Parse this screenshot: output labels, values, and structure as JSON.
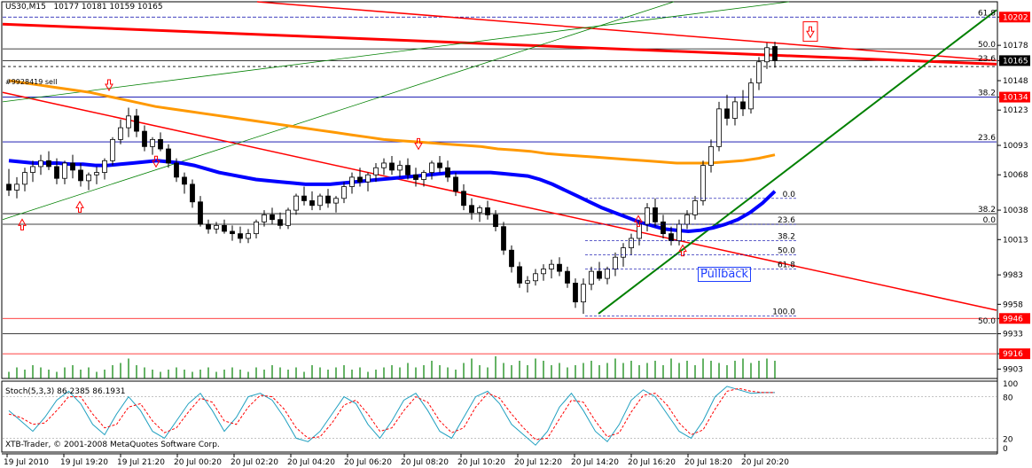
{
  "header": {
    "symbol": "US30,M15",
    "ohlc": "10177 10181 10159 10165"
  },
  "order_label": "#9928419 sell",
  "stoch_label": "Stoch(5,3,3) 86.2385 86.1931",
  "copyright": "XTB-Trader, © 2001-2008 MetaQuotes Software Corp.",
  "pullback_label": "Pullback",
  "colors": {
    "bull": "#ffffff",
    "bear": "#000000",
    "ma_blue": "#0000ff",
    "ma_orange": "#ff9900",
    "ma_red": "#ff0000",
    "bollinger": "#008000",
    "trend_red": "#ff0000",
    "trend_green": "#008000",
    "level_blue": "#0000aa",
    "price_tag": "#ff0000"
  },
  "chart_data": {
    "type": "candlestick",
    "price_axis": {
      "ticks": [
        "10202",
        "10178",
        "10165",
        "10148",
        "10134",
        "10123",
        "10093",
        "10068",
        "10038",
        "10013",
        "9983",
        "9958",
        "9946",
        "9933",
        "9916",
        "9903"
      ],
      "ylim": [
        9895,
        10215
      ]
    },
    "stoch_axis": {
      "ticks": [
        "100",
        "80",
        "20",
        "0"
      ],
      "ylim": [
        0,
        100
      ]
    },
    "time_axis": [
      "19 Jul 2010",
      "19 Jul 19:20",
      "19 Jul 21:20",
      "20 Jul 00:20",
      "20 Jul 02:20",
      "20 Jul 04:20",
      "20 Jul 06:20",
      "20 Jul 08:20",
      "20 Jul 10:20",
      "20 Jul 12:20",
      "20 Jul 14:20",
      "20 Jul 16:20",
      "20 Jul 18:20",
      "20 Jul 20:20"
    ],
    "price_tags": [
      {
        "value": 10202,
        "label": "10202"
      },
      {
        "value": 10165,
        "label": "10165"
      },
      {
        "value": 10134,
        "label": "10134"
      },
      {
        "value": 9946,
        "label": "9946"
      },
      {
        "value": 9916,
        "label": "9916"
      }
    ],
    "fib_right_labels": [
      {
        "value": 10202,
        "label": "61.8"
      },
      {
        "value": 10175,
        "label": "50.0"
      },
      {
        "value": 10163,
        "label": "23.6"
      },
      {
        "value": 10134,
        "label": "38.2"
      },
      {
        "value": 10096,
        "label": "23.6"
      },
      {
        "value": 10035,
        "label": "38.2"
      },
      {
        "value": 10026,
        "label": "0.0"
      },
      {
        "value": 9940,
        "label": "50.0"
      }
    ],
    "fib_inner_labels": [
      {
        "value": 10048,
        "label": "0.0"
      },
      {
        "value": 10026,
        "label": "23.6"
      },
      {
        "value": 10012,
        "label": "38.2"
      },
      {
        "value": 10000,
        "label": "50.0"
      },
      {
        "value": 9988,
        "label": "61.8"
      },
      {
        "value": 9948,
        "label": "100.0"
      }
    ],
    "candles": [
      [
        10060,
        10073,
        10050,
        10055
      ],
      [
        10055,
        10066,
        10048,
        10060
      ],
      [
        10060,
        10074,
        10054,
        10070
      ],
      [
        10070,
        10080,
        10062,
        10075
      ],
      [
        10075,
        10085,
        10068,
        10080
      ],
      [
        10080,
        10088,
        10072,
        10075
      ],
      [
        10075,
        10082,
        10060,
        10065
      ],
      [
        10065,
        10080,
        10060,
        10078
      ],
      [
        10078,
        10085,
        10065,
        10072
      ],
      [
        10072,
        10078,
        10058,
        10063
      ],
      [
        10063,
        10070,
        10055,
        10068
      ],
      [
        10068,
        10075,
        10060,
        10070
      ],
      [
        10070,
        10082,
        10064,
        10080
      ],
      [
        10080,
        10100,
        10076,
        10098
      ],
      [
        10098,
        10115,
        10094,
        10108
      ],
      [
        10108,
        10125,
        10100,
        10118
      ],
      [
        10118,
        10124,
        10100,
        10105
      ],
      [
        10105,
        10110,
        10088,
        10092
      ],
      [
        10092,
        10100,
        10085,
        10098
      ],
      [
        10098,
        10104,
        10088,
        10090
      ],
      [
        10090,
        10094,
        10074,
        10078
      ],
      [
        10078,
        10082,
        10062,
        10066
      ],
      [
        10066,
        10070,
        10052,
        10060
      ],
      [
        10060,
        10064,
        10040,
        10045
      ],
      [
        10045,
        10050,
        10024,
        10026
      ],
      [
        10026,
        10030,
        10018,
        10022
      ],
      [
        10022,
        10028,
        10018,
        10025
      ],
      [
        10025,
        10030,
        10018,
        10020
      ],
      [
        10020,
        10025,
        10012,
        10018
      ],
      [
        10018,
        10024,
        10010,
        10014
      ],
      [
        10014,
        10022,
        10010,
        10018
      ],
      [
        10018,
        10030,
        10014,
        10028
      ],
      [
        10028,
        10038,
        10024,
        10034
      ],
      [
        10034,
        10040,
        10026,
        10030
      ],
      [
        10030,
        10036,
        10022,
        10025
      ],
      [
        10025,
        10040,
        10022,
        10038
      ],
      [
        10038,
        10052,
        10034,
        10050
      ],
      [
        10050,
        10058,
        10042,
        10046
      ],
      [
        10046,
        10054,
        10038,
        10042
      ],
      [
        10042,
        10052,
        10038,
        10050
      ],
      [
        10050,
        10056,
        10040,
        10044
      ],
      [
        10044,
        10050,
        10036,
        10048
      ],
      [
        10048,
        10062,
        10044,
        10058
      ],
      [
        10058,
        10070,
        10052,
        10066
      ],
      [
        10066,
        10074,
        10058,
        10062
      ],
      [
        10062,
        10070,
        10054,
        10068
      ],
      [
        10068,
        10078,
        10062,
        10074
      ],
      [
        10074,
        10082,
        10068,
        10078
      ],
      [
        10078,
        10084,
        10068,
        10072
      ],
      [
        10072,
        10080,
        10066,
        10076
      ],
      [
        10076,
        10082,
        10064,
        10068
      ],
      [
        10068,
        10074,
        10058,
        10064
      ],
      [
        10064,
        10072,
        10058,
        10070
      ],
      [
        10070,
        10080,
        10064,
        10078
      ],
      [
        10078,
        10084,
        10070,
        10074
      ],
      [
        10074,
        10080,
        10062,
        10066
      ],
      [
        10066,
        10070,
        10050,
        10054
      ],
      [
        10054,
        10060,
        10038,
        10042
      ],
      [
        10042,
        10048,
        10030,
        10036
      ],
      [
        10036,
        10042,
        10028,
        10040
      ],
      [
        10040,
        10046,
        10030,
        10034
      ],
      [
        10034,
        10038,
        10020,
        10024
      ],
      [
        10024,
        10028,
        10000,
        10004
      ],
      [
        10004,
        10008,
        9985,
        9990
      ],
      [
        9990,
        9994,
        9972,
        9976
      ],
      [
        9976,
        9982,
        9968,
        9978
      ],
      [
        9978,
        9988,
        9974,
        9984
      ],
      [
        9984,
        9992,
        9978,
        9988
      ],
      [
        9988,
        9996,
        9980,
        9992
      ],
      [
        9992,
        9998,
        9982,
        9986
      ],
      [
        9986,
        9990,
        9972,
        9976
      ],
      [
        9976,
        9980,
        9955,
        9960
      ],
      [
        9960,
        9980,
        9950,
        9975
      ],
      [
        9975,
        9990,
        9970,
        9986
      ],
      [
        9986,
        9994,
        9978,
        9980
      ],
      [
        9980,
        9990,
        9975,
        9988
      ],
      [
        9988,
        10002,
        9982,
        9998
      ],
      [
        9998,
        10010,
        9990,
        10006
      ],
      [
        10006,
        10018,
        10000,
        10014
      ],
      [
        10014,
        10030,
        10008,
        10026
      ],
      [
        10026,
        10044,
        10020,
        10040
      ],
      [
        10040,
        10048,
        10024,
        10028
      ],
      [
        10028,
        10034,
        10014,
        10018
      ],
      [
        10018,
        10024,
        10008,
        10012
      ],
      [
        10012,
        10030,
        10008,
        10026
      ],
      [
        10026,
        10038,
        10022,
        10034
      ],
      [
        10034,
        10050,
        10030,
        10046
      ],
      [
        10046,
        10080,
        10042,
        10076
      ],
      [
        10076,
        10098,
        10070,
        10092
      ],
      [
        10092,
        10130,
        10088,
        10124
      ],
      [
        10124,
        10136,
        10110,
        10116
      ],
      [
        10116,
        10134,
        10110,
        10130
      ],
      [
        10130,
        10140,
        10118,
        10124
      ],
      [
        10124,
        10150,
        10120,
        10146
      ],
      [
        10146,
        10168,
        10140,
        10164
      ],
      [
        10164,
        10180,
        10158,
        10176
      ],
      [
        10177,
        10181,
        10159,
        10165
      ]
    ],
    "ma_blue": [
      10080,
      10079,
      10078,
      10078,
      10078,
      10077,
      10077,
      10076,
      10076,
      10077,
      10078,
      10079,
      10080,
      10079,
      10078,
      10076,
      10073,
      10070,
      10068,
      10066,
      10064,
      10063,
      10062,
      10061,
      10060,
      10060,
      10060,
      10061,
      10062,
      10063,
      10064,
      10065,
      10066,
      10067,
      10068,
      10069,
      10070,
      10070,
      10070,
      10070,
      10069,
      10068,
      10067,
      10064,
      10060,
      10055,
      10050,
      10045,
      10040,
      10036,
      10032,
      10028,
      10025,
      10022,
      10021,
      10020,
      10021,
      10023,
      10026,
      10030,
      10036,
      10044,
      10054
    ],
    "ma_orange": [
      10148,
      10146,
      10144,
      10142,
      10140,
      10138,
      10135,
      10132,
      10129,
      10126,
      10124,
      10122,
      10120,
      10118,
      10116,
      10114,
      10112,
      10110,
      10108,
      10106,
      10104,
      10102,
      10100,
      10098,
      10097,
      10096,
      10095,
      10094,
      10093,
      10092,
      10090,
      10089,
      10088,
      10086,
      10085,
      10084,
      10083,
      10082,
      10081,
      10080,
      10079,
      10078,
      10078,
      10078,
      10079,
      10080,
      10082,
      10085
    ],
    "stoch_main": [
      60,
      45,
      30,
      50,
      75,
      88,
      70,
      40,
      25,
      55,
      80,
      60,
      30,
      20,
      45,
      70,
      85,
      60,
      30,
      50,
      80,
      85,
      75,
      50,
      20,
      15,
      30,
      55,
      80,
      70,
      40,
      20,
      45,
      75,
      85,
      60,
      30,
      20,
      50,
      80,
      88,
      70,
      40,
      25,
      10,
      30,
      65,
      85,
      60,
      30,
      15,
      40,
      75,
      90,
      80,
      55,
      30,
      20,
      45,
      80,
      95,
      90,
      85,
      86,
      86
    ],
    "stoch_signal": [
      55,
      50,
      40,
      42,
      60,
      80,
      80,
      55,
      35,
      40,
      65,
      70,
      45,
      28,
      35,
      58,
      78,
      72,
      45,
      40,
      65,
      82,
      80,
      62,
      35,
      20,
      22,
      42,
      68,
      75,
      55,
      30,
      35,
      60,
      80,
      72,
      45,
      28,
      35,
      65,
      85,
      78,
      55,
      35,
      18,
      20,
      48,
      75,
      72,
      45,
      22,
      28,
      58,
      82,
      85,
      68,
      42,
      25,
      32,
      62,
      88,
      92,
      88,
      86,
      86
    ],
    "volume": [
      0.3,
      0.5,
      0.4,
      0.6,
      0.5,
      0.4,
      0.3,
      0.5,
      0.6,
      0.4,
      0.5,
      0.3,
      0.4,
      0.6,
      0.7,
      0.9,
      0.6,
      0.5,
      0.4,
      0.3,
      0.4,
      0.5,
      0.4,
      0.3,
      0.4,
      0.5,
      0.3,
      0.4,
      0.5,
      0.4,
      0.3,
      0.5,
      0.4,
      0.6,
      0.5,
      0.4,
      0.5,
      0.3,
      0.6,
      0.5,
      0.4,
      0.5,
      0.6,
      0.4,
      0.5,
      0.3,
      0.4,
      0.5,
      0.6,
      0.5,
      0.7,
      0.5,
      0.6,
      0.8,
      0.6,
      0.5,
      0.4,
      0.7,
      0.9,
      0.6,
      0.5,
      1.0,
      0.7,
      0.6,
      0.8,
      0.6,
      0.9,
      0.8,
      0.6,
      0.7,
      0.5,
      0.6,
      0.7,
      0.8,
      0.6,
      0.7,
      0.9,
      0.7,
      0.8,
      0.6,
      0.7,
      0.8,
      0.6,
      0.9,
      0.7,
      0.8,
      0.6,
      0.9,
      0.8,
      0.7,
      0.6,
      0.8,
      0.9,
      0.7,
      0.8,
      0.9,
      0.8
    ],
    "grid": false
  }
}
